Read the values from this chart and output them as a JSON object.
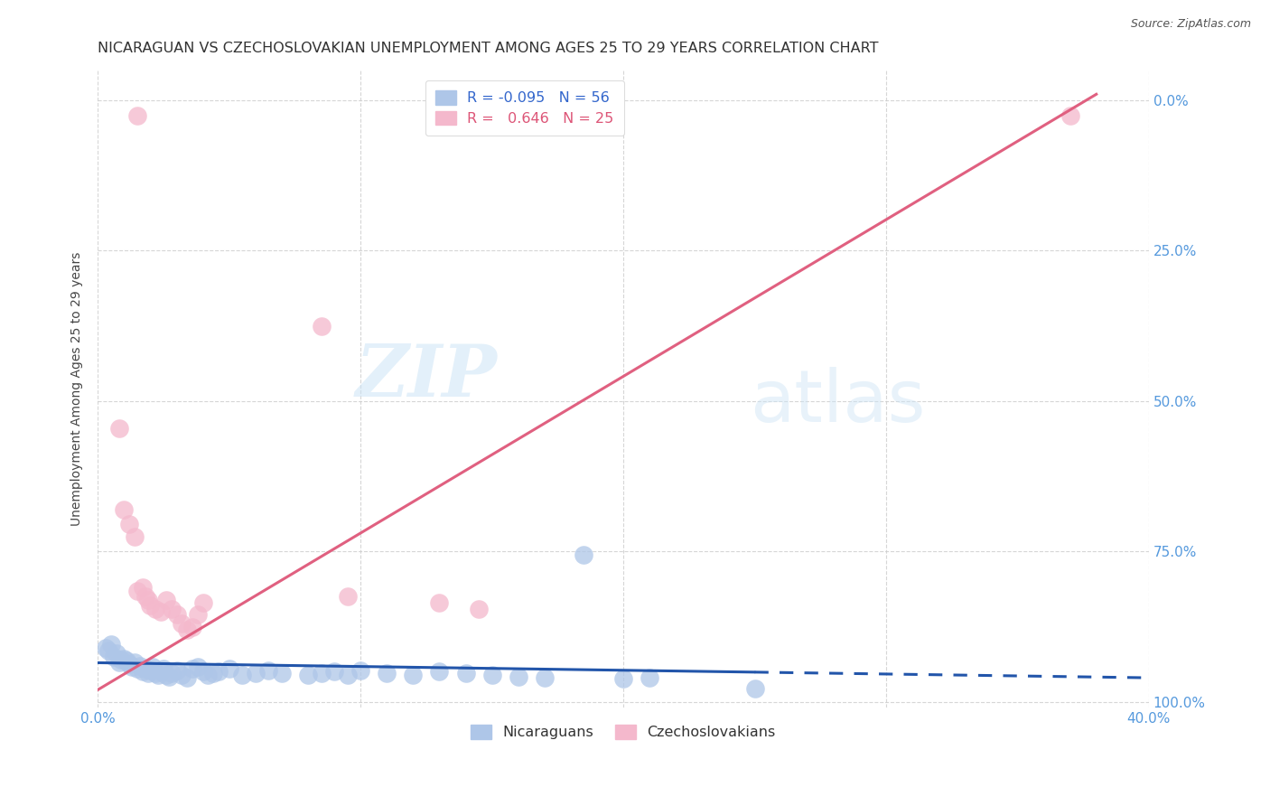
{
  "title": "NICARAGUAN VS CZECHOSLOVAKIAN UNEMPLOYMENT AMONG AGES 25 TO 29 YEARS CORRELATION CHART",
  "source": "Source: ZipAtlas.com",
  "ylabel_label": "Unemployment Among Ages 25 to 29 years",
  "xlabel_ticks": [
    "0.0%",
    "",
    "",
    "",
    "40.0%"
  ],
  "ylabel_ticks_right": [
    "100.0%",
    "75.0%",
    "50.0%",
    "25.0%",
    "0.0%"
  ],
  "xlim": [
    0.0,
    0.4
  ],
  "ylim": [
    -0.01,
    1.05
  ],
  "watermark_zip": "ZIP",
  "watermark_atlas": "atlas",
  "nicaraguan_color": "#aec6e8",
  "czechoslovakian_color": "#f4b8cc",
  "blue_line_color": "#2255aa",
  "pink_line_color": "#e06080",
  "blue_line_solid_end": 0.25,
  "blue_line_start_y": 0.065,
  "blue_line_end_y": 0.04,
  "pink_line_x0": 0.0,
  "pink_line_y0": 0.02,
  "pink_line_x1": 0.38,
  "pink_line_y1": 1.01,
  "nicaraguan_points": [
    [
      0.003,
      0.09
    ],
    [
      0.004,
      0.085
    ],
    [
      0.005,
      0.095
    ],
    [
      0.006,
      0.075
    ],
    [
      0.007,
      0.08
    ],
    [
      0.008,
      0.065
    ],
    [
      0.009,
      0.07
    ],
    [
      0.01,
      0.072
    ],
    [
      0.011,
      0.068
    ],
    [
      0.012,
      0.062
    ],
    [
      0.013,
      0.058
    ],
    [
      0.014,
      0.065
    ],
    [
      0.015,
      0.055
    ],
    [
      0.016,
      0.06
    ],
    [
      0.017,
      0.05
    ],
    [
      0.018,
      0.055
    ],
    [
      0.019,
      0.048
    ],
    [
      0.02,
      0.052
    ],
    [
      0.021,
      0.058
    ],
    [
      0.022,
      0.048
    ],
    [
      0.023,
      0.045
    ],
    [
      0.024,
      0.05
    ],
    [
      0.025,
      0.055
    ],
    [
      0.026,
      0.045
    ],
    [
      0.027,
      0.042
    ],
    [
      0.028,
      0.048
    ],
    [
      0.03,
      0.052
    ],
    [
      0.032,
      0.045
    ],
    [
      0.034,
      0.04
    ],
    [
      0.036,
      0.055
    ],
    [
      0.038,
      0.058
    ],
    [
      0.04,
      0.05
    ],
    [
      0.042,
      0.045
    ],
    [
      0.044,
      0.048
    ],
    [
      0.046,
      0.05
    ],
    [
      0.05,
      0.055
    ],
    [
      0.055,
      0.045
    ],
    [
      0.06,
      0.048
    ],
    [
      0.065,
      0.052
    ],
    [
      0.07,
      0.048
    ],
    [
      0.08,
      0.045
    ],
    [
      0.085,
      0.048
    ],
    [
      0.09,
      0.05
    ],
    [
      0.095,
      0.045
    ],
    [
      0.1,
      0.052
    ],
    [
      0.11,
      0.048
    ],
    [
      0.12,
      0.045
    ],
    [
      0.13,
      0.05
    ],
    [
      0.14,
      0.048
    ],
    [
      0.15,
      0.045
    ],
    [
      0.16,
      0.042
    ],
    [
      0.17,
      0.04
    ],
    [
      0.185,
      0.245
    ],
    [
      0.2,
      0.038
    ],
    [
      0.21,
      0.04
    ],
    [
      0.25,
      0.022
    ]
  ],
  "czechoslovakian_points": [
    [
      0.015,
      0.975
    ],
    [
      0.008,
      0.455
    ],
    [
      0.01,
      0.32
    ],
    [
      0.012,
      0.295
    ],
    [
      0.014,
      0.275
    ],
    [
      0.015,
      0.185
    ],
    [
      0.017,
      0.19
    ],
    [
      0.018,
      0.175
    ],
    [
      0.019,
      0.17
    ],
    [
      0.02,
      0.16
    ],
    [
      0.022,
      0.155
    ],
    [
      0.024,
      0.15
    ],
    [
      0.026,
      0.17
    ],
    [
      0.028,
      0.155
    ],
    [
      0.03,
      0.145
    ],
    [
      0.032,
      0.13
    ],
    [
      0.034,
      0.12
    ],
    [
      0.036,
      0.125
    ],
    [
      0.038,
      0.145
    ],
    [
      0.04,
      0.165
    ],
    [
      0.085,
      0.625
    ],
    [
      0.095,
      0.175
    ],
    [
      0.13,
      0.165
    ],
    [
      0.145,
      0.155
    ],
    [
      0.37,
      0.975
    ]
  ],
  "background_color": "#ffffff",
  "grid_color": "#cccccc",
  "title_fontsize": 11.5,
  "tick_color": "#5599dd",
  "tick_fontsize": 11
}
